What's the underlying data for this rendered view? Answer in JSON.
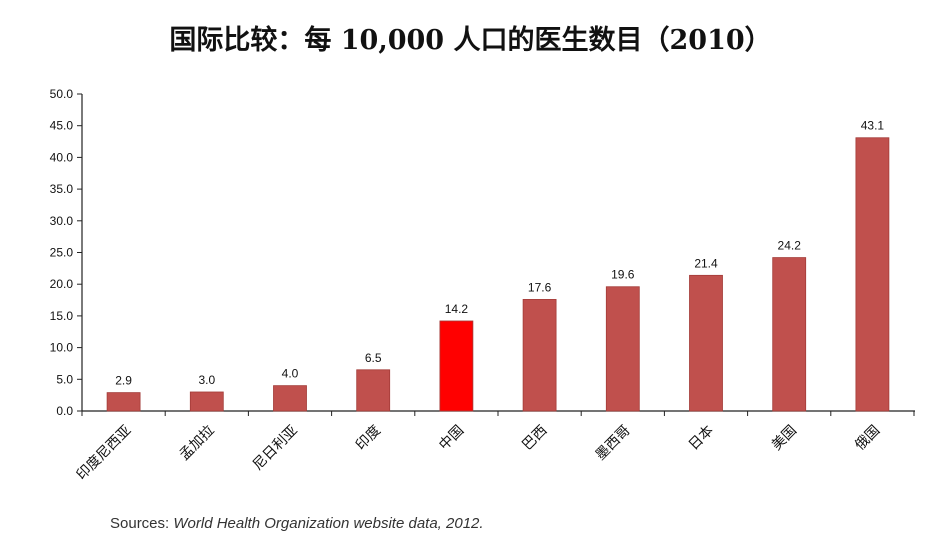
{
  "source": {
    "prefix": "Sources: ",
    "citation": "World Health Organization website data, 2012."
  },
  "colors": {
    "bar": "#c0504d",
    "highlight": "#ff0000",
    "axis": "#222222"
  },
  "chart_data": {
    "type": "bar",
    "title": "国际比较：每 10,000 人口的医生数目（2010）",
    "categories": [
      "印度尼西亚",
      "孟加拉",
      "尼日利亚",
      "印度",
      "中国",
      "巴西",
      "墨西哥",
      "日本",
      "美国",
      "俄国"
    ],
    "values": [
      2.9,
      3.0,
      4.0,
      6.5,
      14.2,
      17.6,
      19.6,
      21.4,
      24.2,
      43.1
    ],
    "value_labels": [
      "2.9",
      "3.0",
      "4.0",
      "6.5",
      "14.2",
      "17.6",
      "19.6",
      "21.4",
      "24.2",
      "43.1"
    ],
    "highlight_category": "中国",
    "ylim": [
      0,
      50
    ],
    "yticks": [
      "0.0",
      "5.0",
      "10.0",
      "15.0",
      "20.0",
      "25.0",
      "30.0",
      "35.0",
      "40.0",
      "45.0",
      "50.0"
    ],
    "xlabel": "",
    "ylabel": "",
    "grid": false,
    "legend": "none"
  }
}
